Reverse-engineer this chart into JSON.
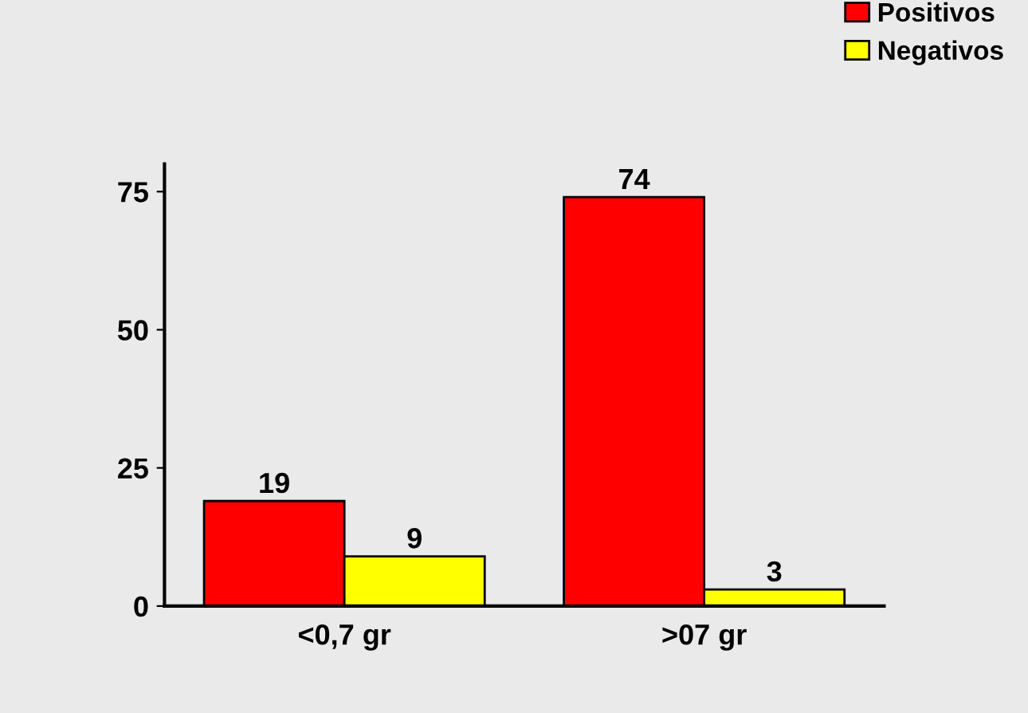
{
  "chart_data": {
    "type": "bar",
    "categories": [
      "<0,7 gr",
      ">07 gr"
    ],
    "series": [
      {
        "name": "Positivos",
        "color": "#ff0000",
        "values": [
          19,
          74
        ]
      },
      {
        "name": "Negativos",
        "color": "#ffff00",
        "values": [
          9,
          3
        ]
      }
    ],
    "ylim": [
      0,
      80
    ],
    "yticks": [
      0,
      25,
      50,
      75
    ],
    "grid": false,
    "legend": "top right",
    "data_labels": true
  }
}
